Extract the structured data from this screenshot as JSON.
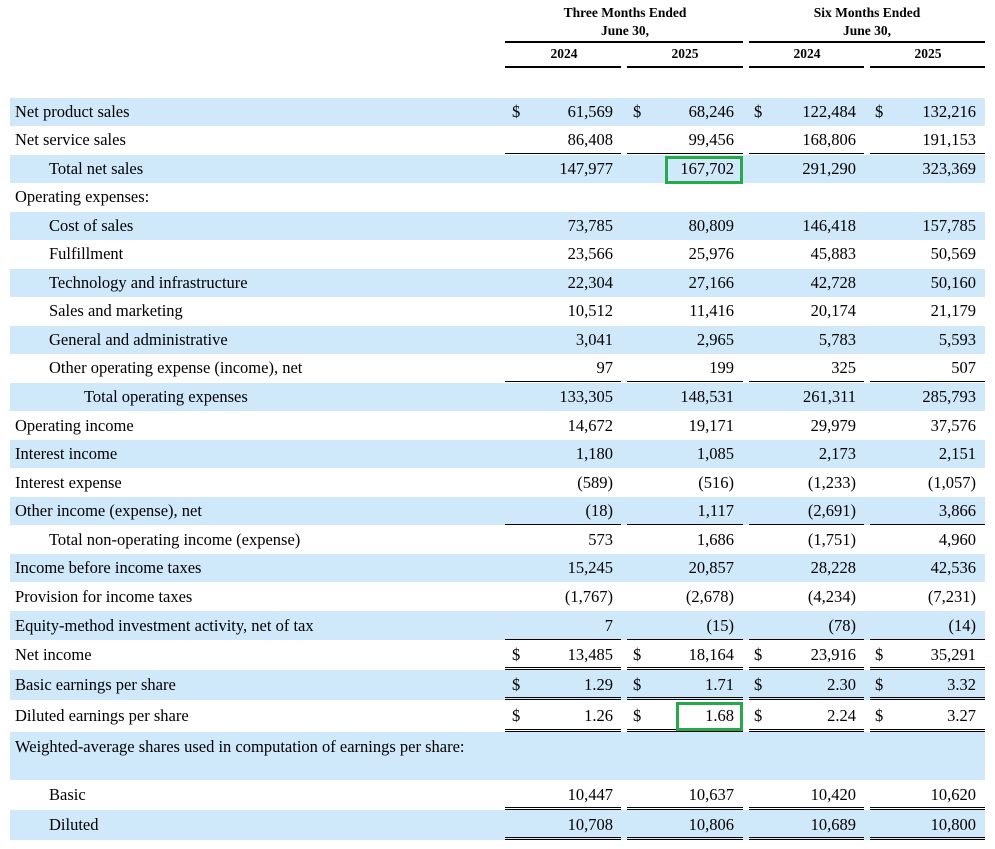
{
  "header": {
    "group1_line1": "Three Months Ended",
    "group1_line2": "June 30,",
    "group2_line1": "Six Months Ended",
    "group2_line2": "June 30,",
    "years": [
      "2024",
      "2025",
      "2024",
      "2025"
    ]
  },
  "currency_symbol": "$",
  "rows": [
    {
      "label": "Net product sales",
      "values": [
        "61,569",
        "68,246",
        "122,484",
        "132,216"
      ]
    },
    {
      "label": "Net service sales",
      "values": [
        "86,408",
        "99,456",
        "168,806",
        "191,153"
      ]
    },
    {
      "label": "Total net sales",
      "values": [
        "147,977",
        "167,702",
        "291,290",
        "323,369"
      ]
    },
    {
      "label": "Operating expenses:",
      "values": [
        "",
        "",
        "",
        ""
      ]
    },
    {
      "label": "Cost of sales",
      "values": [
        "73,785",
        "80,809",
        "146,418",
        "157,785"
      ]
    },
    {
      "label": "Fulfillment",
      "values": [
        "23,566",
        "25,976",
        "45,883",
        "50,569"
      ]
    },
    {
      "label": "Technology and infrastructure",
      "values": [
        "22,304",
        "27,166",
        "42,728",
        "50,160"
      ]
    },
    {
      "label": "Sales and marketing",
      "values": [
        "10,512",
        "11,416",
        "20,174",
        "21,179"
      ]
    },
    {
      "label": "General and administrative",
      "values": [
        "3,041",
        "2,965",
        "5,783",
        "5,593"
      ]
    },
    {
      "label": "Other operating expense (income), net",
      "values": [
        "97",
        "199",
        "325",
        "507"
      ]
    },
    {
      "label": "Total operating expenses",
      "values": [
        "133,305",
        "148,531",
        "261,311",
        "285,793"
      ]
    },
    {
      "label": "Operating income",
      "values": [
        "14,672",
        "19,171",
        "29,979",
        "37,576"
      ]
    },
    {
      "label": "Interest income",
      "values": [
        "1,180",
        "1,085",
        "2,173",
        "2,151"
      ]
    },
    {
      "label": "Interest expense",
      "values": [
        "(589)",
        "(516)",
        "(1,233)",
        "(1,057)"
      ]
    },
    {
      "label": "Other income (expense), net",
      "values": [
        "(18)",
        "1,117",
        "(2,691)",
        "3,866"
      ]
    },
    {
      "label": "Total non-operating income (expense)",
      "values": [
        "573",
        "1,686",
        "(1,751)",
        "4,960"
      ]
    },
    {
      "label": "Income before income taxes",
      "values": [
        "15,245",
        "20,857",
        "28,228",
        "42,536"
      ]
    },
    {
      "label": "Provision for income taxes",
      "values": [
        "(1,767)",
        "(2,678)",
        "(4,234)",
        "(7,231)"
      ]
    },
    {
      "label": "Equity-method investment activity, net of tax",
      "values": [
        "7",
        "(15)",
        "(78)",
        "(14)"
      ]
    },
    {
      "label": "Net income",
      "values": [
        "13,485",
        "18,164",
        "23,916",
        "35,291"
      ]
    },
    {
      "label": "Basic earnings per share",
      "values": [
        "1.29",
        "1.71",
        "2.30",
        "3.32"
      ]
    },
    {
      "label": "Diluted earnings per share",
      "values": [
        "1.26",
        "1.68",
        "2.24",
        "3.27"
      ]
    },
    {
      "label": "Weighted-average shares used in computation of earnings per share:",
      "values": [
        "",
        "",
        "",
        ""
      ]
    },
    {
      "label": "Basic",
      "values": [
        "10,447",
        "10,637",
        "10,420",
        "10,620"
      ]
    },
    {
      "label": "Diluted",
      "values": [
        "10,708",
        "10,806",
        "10,689",
        "10,800"
      ]
    }
  ]
}
